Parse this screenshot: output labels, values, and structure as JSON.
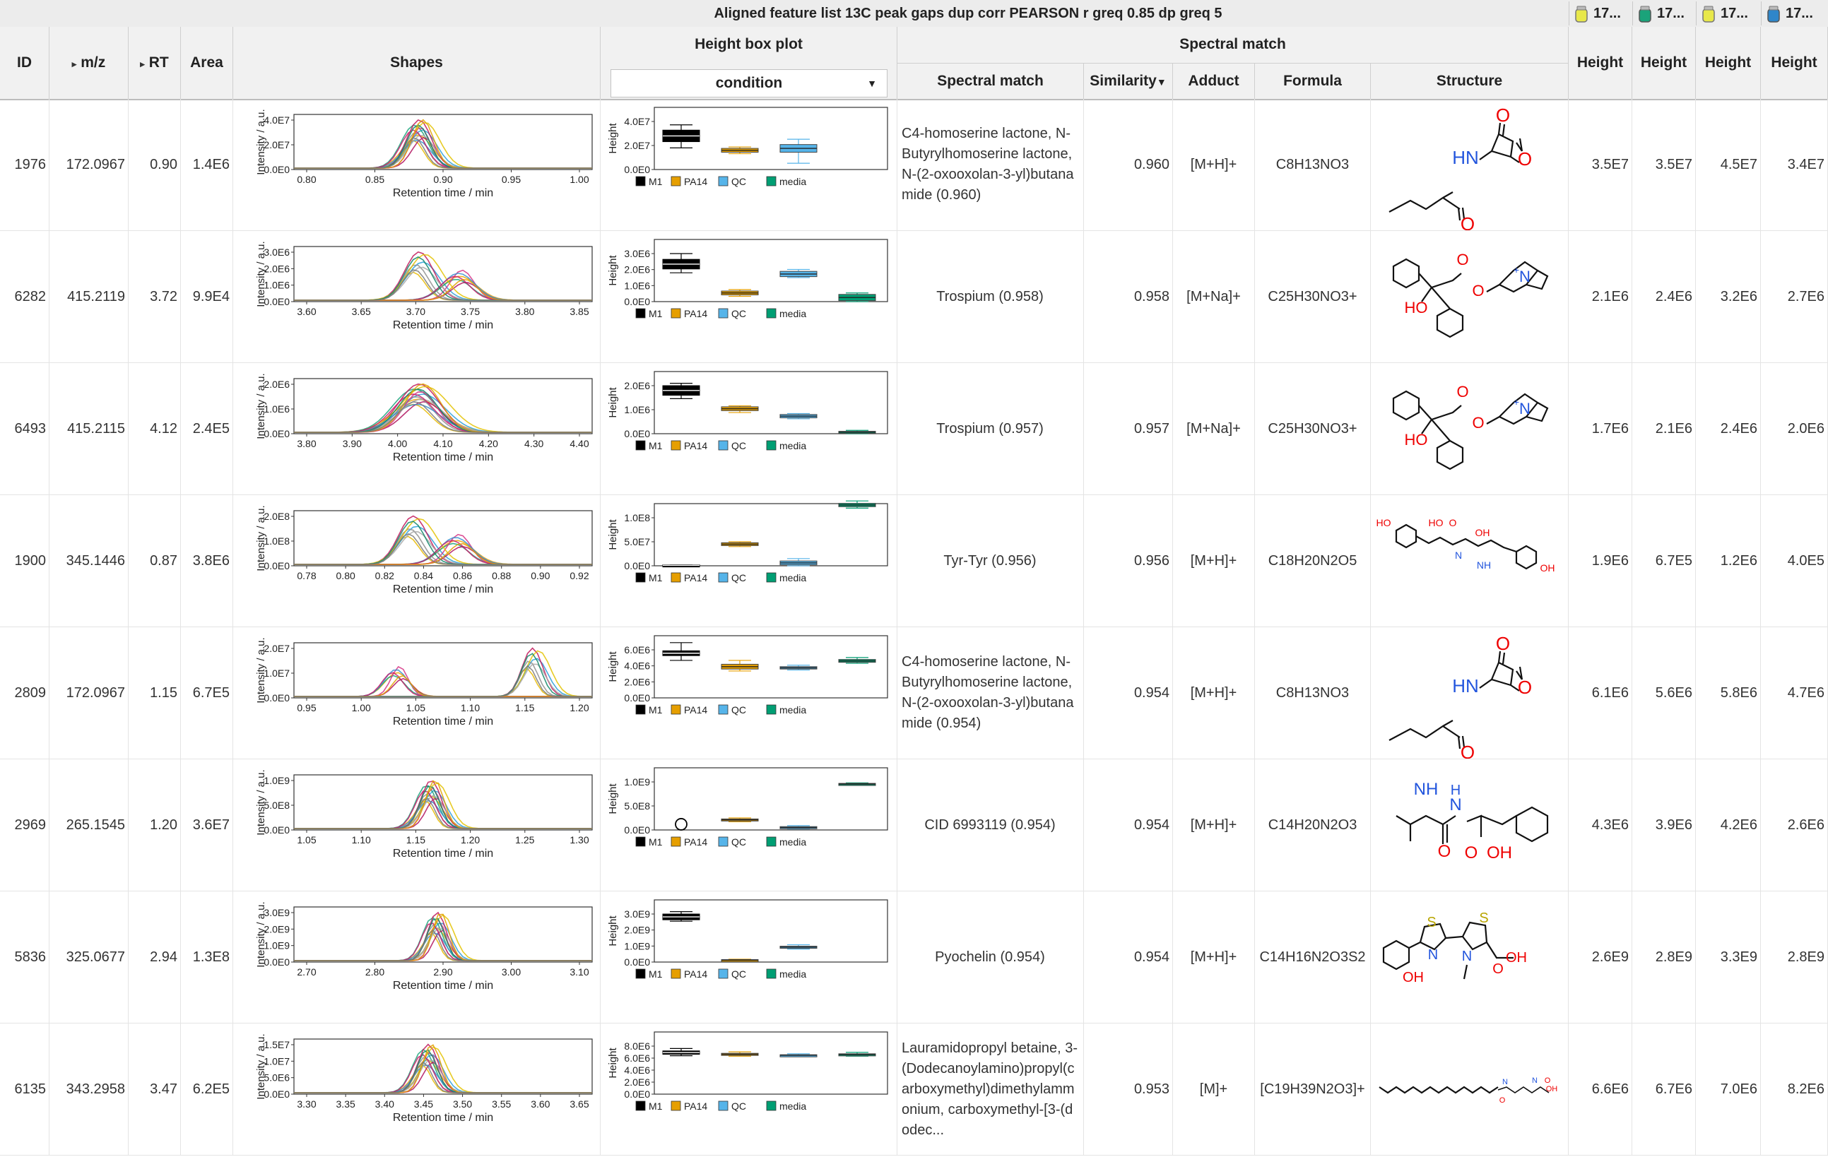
{
  "header": {
    "title": "Aligned feature list 13C peak gaps dup corr PEARSON r greq 0.85 dp greq 5",
    "samples": [
      {
        "label": "17...",
        "color": "#e8e84a"
      },
      {
        "label": "17...",
        "color": "#1aa37a"
      },
      {
        "label": "17...",
        "color": "#e8e84a"
      },
      {
        "label": "17...",
        "color": "#2f86c9"
      }
    ],
    "columns": {
      "id": "ID",
      "mz": "m/z",
      "rt": "RT",
      "area": "Area",
      "shapes": "Shapes",
      "box_plot": "Height box plot",
      "box_plot_select": "condition",
      "spectral_group": "Spectral match",
      "spectral_match": "Spectral match",
      "similarity": "Similarity",
      "adduct": "Adduct",
      "formula": "Formula",
      "structure": "Structure",
      "height": "Height"
    }
  },
  "legend": {
    "items": [
      {
        "label": "M1",
        "color": "#000000"
      },
      {
        "label": "PA14",
        "color": "#e69f00"
      },
      {
        "label": "QC",
        "color": "#56b4e9"
      },
      {
        "label": "media",
        "color": "#009e73"
      }
    ]
  },
  "axis_labels": {
    "shape_y": "Intensity / a.u.",
    "shape_x": "Retention time / min",
    "box_y": "Height"
  },
  "rows": [
    {
      "id": "1976",
      "mz": "172.0967",
      "rt": "0.90",
      "area": "1.4E6",
      "match": "C4-homoserine lactone, N-Butyrylhomoserine lactone, N-(2-oxooxolan-3-yl)butanamide (0.960)",
      "similarity": "0.960",
      "adduct": "[M+H]+",
      "formula": "C8H13NO3",
      "heights": [
        "3.5E7",
        "3.5E7",
        "4.5E7",
        "3.4E7"
      ],
      "structure": "lactone",
      "shape": {
        "x_ticks": [
          "0.80",
          "0.85",
          "0.90",
          "0.95",
          "1.00"
        ],
        "y_ticks": [
          "4.0E7",
          "2.0E7",
          "0.0E0"
        ],
        "peak": 0.42,
        "spread": 0.06,
        "extra": []
      },
      "box": {
        "y_ticks": [
          "4.0E7",
          "2.0E7",
          "0.0E0"
        ],
        "M1": [
          0.82,
          0.58,
          0.93,
          0.45
        ],
        "PA14": [
          0.44,
          0.36,
          0.47,
          0.33
        ],
        "QC": [
          0.52,
          0.36,
          0.63,
          0.13
        ],
        "media": null
      }
    },
    {
      "id": "6282",
      "mz": "415.2119",
      "rt": "3.72",
      "area": "9.9E4",
      "match": "Trospium (0.958)",
      "similarity": "0.958",
      "adduct": "[M+Na]+",
      "formula": "C25H30NO3+",
      "heights": [
        "2.1E6",
        "2.4E6",
        "3.2E6",
        "2.7E6"
      ],
      "structure": "trospium",
      "shape": {
        "x_ticks": [
          "3.60",
          "3.65",
          "3.70",
          "3.75",
          "3.80",
          "3.85"
        ],
        "y_ticks": [
          "3.0E6",
          "2.0E6",
          "1.0E6",
          "0.0E0"
        ],
        "peak": 0.42,
        "spread": 0.07,
        "extra": [
          0.56
        ]
      },
      "box": {
        "y_ticks": [
          "3.0E6",
          "2.0E6",
          "1.0E6",
          "0.0E0"
        ],
        "M1": [
          0.88,
          0.68,
          1.0,
          0.6
        ],
        "PA14": [
          0.22,
          0.14,
          0.25,
          0.11
        ],
        "QC": [
          0.63,
          0.52,
          0.67,
          0.5
        ],
        "media": [
          0.15,
          0.02,
          0.18,
          0.0
        ]
      }
    },
    {
      "id": "6493",
      "mz": "415.2115",
      "rt": "4.12",
      "area": "2.4E5",
      "match": "Trospium (0.957)",
      "similarity": "0.957",
      "adduct": "[M+Na]+",
      "formula": "C25H30NO3+",
      "heights": [
        "1.7E6",
        "2.1E6",
        "2.4E6",
        "2.0E6"
      ],
      "structure": "trospium",
      "shape": {
        "x_ticks": [
          "3.80",
          "3.90",
          "4.00",
          "4.10",
          "4.20",
          "4.30",
          "4.40"
        ],
        "y_ticks": [
          "2.0E6",
          "1.0E6",
          "0.0E0"
        ],
        "peak": 0.42,
        "spread": 0.1,
        "extra": []
      },
      "box": {
        "y_ticks": [
          "2.0E6",
          "1.0E6",
          "0.0E0"
        ],
        "M1": [
          1.0,
          0.8,
          1.05,
          0.73
        ],
        "PA14": [
          0.56,
          0.48,
          0.58,
          0.44
        ],
        "QC": [
          0.4,
          0.33,
          0.42,
          0.31
        ],
        "media": [
          0.05,
          0.01,
          0.07,
          0.0
        ]
      }
    },
    {
      "id": "1900",
      "mz": "345.1446",
      "rt": "0.87",
      "area": "3.8E6",
      "match": "Tyr-Tyr (0.956)",
      "similarity": "0.956",
      "adduct": "[M+H]+",
      "formula": "C18H20N2O5",
      "heights": [
        "1.9E6",
        "6.7E5",
        "1.2E6",
        "4.0E5"
      ],
      "structure": "tyrtyr",
      "shape": {
        "x_ticks": [
          "0.78",
          "0.80",
          "0.82",
          "0.84",
          "0.86",
          "0.88",
          "0.90",
          "0.92"
        ],
        "y_ticks": [
          "2.0E8",
          "1.0E8",
          "0.0E0"
        ],
        "peak": 0.4,
        "spread": 0.07,
        "extra": [
          0.55
        ]
      },
      "box": {
        "y_ticks": [
          "1.0E8",
          "5.0E7",
          "0.0E0"
        ],
        "M1": [
          0.02,
          0.0,
          0.02,
          0.0
        ],
        "PA14": [
          0.48,
          0.42,
          0.5,
          0.4
        ],
        "QC": [
          0.1,
          0.02,
          0.15,
          0.0
        ],
        "media": [
          1.3,
          1.23,
          1.35,
          1.2
        ]
      }
    },
    {
      "id": "2809",
      "mz": "172.0967",
      "rt": "1.15",
      "area": "6.7E5",
      "match": "C4-homoserine lactone, N-Butyrylhomoserine lactone, N-(2-oxooxolan-3-yl)butanamide (0.954)",
      "similarity": "0.954",
      "adduct": "[M+H]+",
      "formula": "C8H13NO3",
      "heights": [
        "6.1E6",
        "5.6E6",
        "5.8E6",
        "4.7E6"
      ],
      "structure": "lactone",
      "shape": {
        "x_ticks": [
          "0.95",
          "1.00",
          "1.05",
          "1.10",
          "1.15",
          "1.20"
        ],
        "y_ticks": [
          "2.0E7",
          "1.0E7",
          "0.0E0"
        ],
        "peak": 0.8,
        "spread": 0.05,
        "extra": [
          0.35
        ]
      },
      "box": {
        "y_ticks": [
          "6.0E6",
          "4.0E6",
          "2.0E6",
          "0.0E0"
        ],
        "M1": [
          0.98,
          0.88,
          1.15,
          0.78
        ],
        "PA14": [
          0.7,
          0.6,
          0.78,
          0.56
        ],
        "QC": [
          0.65,
          0.6,
          0.68,
          0.58
        ],
        "media": [
          0.8,
          0.74,
          0.84,
          0.72
        ]
      }
    },
    {
      "id": "2969",
      "mz": "265.1545",
      "rt": "1.20",
      "area": "3.6E7",
      "match": "CID 6993119 (0.954)",
      "similarity": "0.954",
      "adduct": "[M+H]+",
      "formula": "C14H20N2O3",
      "heights": [
        "4.3E6",
        "3.9E6",
        "4.2E6",
        "2.6E6"
      ],
      "structure": "valphe",
      "shape": {
        "x_ticks": [
          "1.05",
          "1.10",
          "1.15",
          "1.20",
          "1.25",
          "1.30"
        ],
        "y_ticks": [
          "1.0E9",
          "5.0E8",
          "0.0E0"
        ],
        "peak": 0.46,
        "spread": 0.05,
        "extra": []
      },
      "box": {
        "y_ticks": [
          "1.0E9",
          "5.0E8",
          "0.0E0"
        ],
        "M1": null,
        "outlier_M1": 0.06,
        "PA14": [
          0.23,
          0.19,
          0.25,
          0.17
        ],
        "QC": [
          0.07,
          0.03,
          0.09,
          0.02
        ],
        "media": [
          0.97,
          0.94,
          0.98,
          0.93
        ]
      }
    },
    {
      "id": "5836",
      "mz": "325.0677",
      "rt": "2.94",
      "area": "1.3E8",
      "match": "Pyochelin (0.954)",
      "similarity": "0.954",
      "adduct": "[M+H]+",
      "formula": "C14H16N2O3S2",
      "heights": [
        "2.6E9",
        "2.8E9",
        "3.3E9",
        "2.8E9"
      ],
      "structure": "pyochelin",
      "shape": {
        "x_ticks": [
          "2.70",
          "2.80",
          "2.90",
          "3.00",
          "3.10"
        ],
        "y_ticks": [
          "3.0E9",
          "2.0E9",
          "1.0E9",
          "0.0E0"
        ],
        "peak": 0.48,
        "spread": 0.045,
        "extra": []
      },
      "box": {
        "y_ticks": [
          "3.0E9",
          "2.0E9",
          "1.0E9",
          "0.0E0"
        ],
        "M1": [
          1.0,
          0.88,
          1.05,
          0.85
        ],
        "PA14": [
          0.05,
          0.03,
          0.06,
          0.02
        ],
        "QC": [
          0.33,
          0.29,
          0.36,
          0.27
        ],
        "media": null
      }
    },
    {
      "id": "6135",
      "mz": "343.2958",
      "rt": "3.47",
      "area": "6.2E5",
      "match": "Lauramidopropyl betaine, 3-(Dodecanoylamino)propyl(carboxymethyl)dimethylammonium, carboxymethyl-[3-(dodec...",
      "similarity": "0.953",
      "adduct": "[M]+",
      "formula": "[C19H39N2O3]+",
      "heights": [
        "6.6E6",
        "6.7E6",
        "7.0E6",
        "8.2E6"
      ],
      "structure": "betaine",
      "shape": {
        "x_ticks": [
          "3.30",
          "3.35",
          "3.40",
          "3.45",
          "3.50",
          "3.55",
          "3.60",
          "3.65"
        ],
        "y_ticks": [
          "1.5E7",
          "1.0E7",
          "5.0E6",
          "0.0E0"
        ],
        "peak": 0.45,
        "spread": 0.05,
        "extra": []
      },
      "box": {
        "y_ticks": [
          "8.0E6",
          "6.0E6",
          "4.0E6",
          "2.0E6",
          "0.0E0"
        ],
        "M1": [
          0.9,
          0.83,
          0.95,
          0.8
        ],
        "PA14": [
          0.85,
          0.81,
          0.88,
          0.79
        ],
        "QC": [
          0.82,
          0.8,
          0.84,
          0.79
        ],
        "media": [
          0.84,
          0.81,
          0.87,
          0.79
        ]
      }
    }
  ]
}
